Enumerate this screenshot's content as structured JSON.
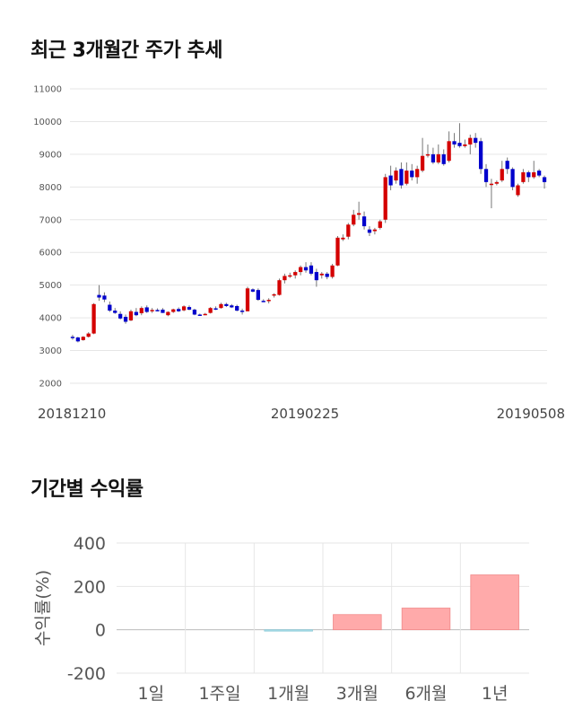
{
  "titles": {
    "price_chart": "최근 3개월간 주가 추세",
    "returns_chart": "기간별 수익률"
  },
  "colors": {
    "up": "#d40000",
    "down": "#0000cc",
    "grid": "#e6e6e6",
    "bar_positive": "#ffaaaa",
    "bar_negative": "#a8dde8"
  },
  "chart_data": [
    {
      "type": "candlestick",
      "title": "최근 3개월간 주가 추세",
      "x_tick_labels": [
        "20181210",
        "20190225",
        "20190508"
      ],
      "y_ticks": [
        2000,
        3000,
        4000,
        5000,
        6000,
        7000,
        8000,
        9000,
        10000,
        11000
      ],
      "ylim": [
        2000,
        11000
      ],
      "grid": true,
      "candles": [
        {
          "o": 3420,
          "h": 3480,
          "l": 3330,
          "c": 3380
        },
        {
          "o": 3400,
          "h": 3420,
          "l": 3250,
          "c": 3280
        },
        {
          "o": 3320,
          "h": 3440,
          "l": 3300,
          "c": 3420
        },
        {
          "o": 3420,
          "h": 3560,
          "l": 3400,
          "c": 3520
        },
        {
          "o": 3520,
          "h": 4450,
          "l": 3500,
          "c": 4420
        },
        {
          "o": 4700,
          "h": 5000,
          "l": 4520,
          "c": 4620
        },
        {
          "o": 4680,
          "h": 4780,
          "l": 4480,
          "c": 4560
        },
        {
          "o": 4400,
          "h": 4500,
          "l": 4180,
          "c": 4220
        },
        {
          "o": 4220,
          "h": 4300,
          "l": 4120,
          "c": 4150
        },
        {
          "o": 4120,
          "h": 4200,
          "l": 3950,
          "c": 3980
        },
        {
          "o": 4030,
          "h": 4100,
          "l": 3820,
          "c": 3880
        },
        {
          "o": 3920,
          "h": 4250,
          "l": 3900,
          "c": 4200
        },
        {
          "o": 4180,
          "h": 4300,
          "l": 4050,
          "c": 4080
        },
        {
          "o": 4140,
          "h": 4350,
          "l": 4080,
          "c": 4300
        },
        {
          "o": 4320,
          "h": 4380,
          "l": 4150,
          "c": 4180
        },
        {
          "o": 4200,
          "h": 4300,
          "l": 4150,
          "c": 4240
        },
        {
          "o": 4240,
          "h": 4290,
          "l": 4200,
          "c": 4230
        },
        {
          "o": 4250,
          "h": 4300,
          "l": 4150,
          "c": 4150
        },
        {
          "o": 4080,
          "h": 4200,
          "l": 4050,
          "c": 4180
        },
        {
          "o": 4180,
          "h": 4280,
          "l": 4150,
          "c": 4260
        },
        {
          "o": 4270,
          "h": 4320,
          "l": 4180,
          "c": 4200
        },
        {
          "o": 4230,
          "h": 4380,
          "l": 4200,
          "c": 4350
        },
        {
          "o": 4330,
          "h": 4380,
          "l": 4230,
          "c": 4250
        },
        {
          "o": 4250,
          "h": 4280,
          "l": 4080,
          "c": 4100
        },
        {
          "o": 4100,
          "h": 4130,
          "l": 4060,
          "c": 4080
        },
        {
          "o": 4100,
          "h": 4150,
          "l": 4080,
          "c": 4120
        },
        {
          "o": 4150,
          "h": 4330,
          "l": 4130,
          "c": 4300
        },
        {
          "o": 4290,
          "h": 4350,
          "l": 4240,
          "c": 4270
        },
        {
          "o": 4300,
          "h": 4460,
          "l": 4280,
          "c": 4420
        },
        {
          "o": 4420,
          "h": 4460,
          "l": 4330,
          "c": 4360
        },
        {
          "o": 4380,
          "h": 4420,
          "l": 4300,
          "c": 4320
        },
        {
          "o": 4360,
          "h": 4400,
          "l": 4200,
          "c": 4220
        },
        {
          "o": 4220,
          "h": 4280,
          "l": 4100,
          "c": 4180
        },
        {
          "o": 4200,
          "h": 4950,
          "l": 4200,
          "c": 4900
        },
        {
          "o": 4870,
          "h": 4900,
          "l": 4780,
          "c": 4800
        },
        {
          "o": 4850,
          "h": 4900,
          "l": 4520,
          "c": 4550
        },
        {
          "o": 4520,
          "h": 4570,
          "l": 4480,
          "c": 4500
        },
        {
          "o": 4520,
          "h": 4600,
          "l": 4440,
          "c": 4550
        },
        {
          "o": 4680,
          "h": 4750,
          "l": 4620,
          "c": 4720
        },
        {
          "o": 4700,
          "h": 5200,
          "l": 4680,
          "c": 5150
        },
        {
          "o": 5150,
          "h": 5350,
          "l": 5050,
          "c": 5280
        },
        {
          "o": 5280,
          "h": 5380,
          "l": 5220,
          "c": 5300
        },
        {
          "o": 5300,
          "h": 5450,
          "l": 5200,
          "c": 5400
        },
        {
          "o": 5400,
          "h": 5600,
          "l": 5300,
          "c": 5550
        },
        {
          "o": 5550,
          "h": 5700,
          "l": 5380,
          "c": 5450
        },
        {
          "o": 5600,
          "h": 5700,
          "l": 5300,
          "c": 5350
        },
        {
          "o": 5400,
          "h": 5500,
          "l": 4950,
          "c": 5150
        },
        {
          "o": 5300,
          "h": 5400,
          "l": 5200,
          "c": 5350
        },
        {
          "o": 5350,
          "h": 5400,
          "l": 5180,
          "c": 5250
        },
        {
          "o": 5250,
          "h": 5650,
          "l": 5200,
          "c": 5600
        },
        {
          "o": 5600,
          "h": 6500,
          "l": 5580,
          "c": 6450
        },
        {
          "o": 6400,
          "h": 6550,
          "l": 6350,
          "c": 6450
        },
        {
          "o": 6480,
          "h": 6900,
          "l": 6400,
          "c": 6850
        },
        {
          "o": 6850,
          "h": 7300,
          "l": 6800,
          "c": 7150
        },
        {
          "o": 7150,
          "h": 7550,
          "l": 7000,
          "c": 7200
        },
        {
          "o": 7100,
          "h": 7250,
          "l": 6700,
          "c": 6800
        },
        {
          "o": 6700,
          "h": 6800,
          "l": 6500,
          "c": 6600
        },
        {
          "o": 6650,
          "h": 6750,
          "l": 6550,
          "c": 6700
        },
        {
          "o": 6750,
          "h": 7000,
          "l": 6700,
          "c": 6950
        },
        {
          "o": 7000,
          "h": 8400,
          "l": 6900,
          "c": 8300
        },
        {
          "o": 8350,
          "h": 8650,
          "l": 7900,
          "c": 8050
        },
        {
          "o": 8200,
          "h": 8600,
          "l": 8100,
          "c": 8500
        },
        {
          "o": 8550,
          "h": 8750,
          "l": 7950,
          "c": 8050
        },
        {
          "o": 8100,
          "h": 8750,
          "l": 8050,
          "c": 8500
        },
        {
          "o": 8500,
          "h": 8700,
          "l": 8200,
          "c": 8300
        },
        {
          "o": 8300,
          "h": 8650,
          "l": 8100,
          "c": 8550
        },
        {
          "o": 8500,
          "h": 9500,
          "l": 8450,
          "c": 8950
        },
        {
          "o": 9000,
          "h": 9300,
          "l": 8900,
          "c": 9000
        },
        {
          "o": 9000,
          "h": 9200,
          "l": 8700,
          "c": 8750
        },
        {
          "o": 8750,
          "h": 9300,
          "l": 8700,
          "c": 9000
        },
        {
          "o": 9000,
          "h": 9150,
          "l": 8650,
          "c": 8700
        },
        {
          "o": 8800,
          "h": 9700,
          "l": 8750,
          "c": 9400
        },
        {
          "o": 9400,
          "h": 9650,
          "l": 9200,
          "c": 9300
        },
        {
          "o": 9350,
          "h": 9950,
          "l": 9200,
          "c": 9250
        },
        {
          "o": 9250,
          "h": 9450,
          "l": 9200,
          "c": 9300
        },
        {
          "o": 9300,
          "h": 9600,
          "l": 9000,
          "c": 9500
        },
        {
          "o": 9500,
          "h": 9650,
          "l": 9200,
          "c": 9350
        },
        {
          "o": 9400,
          "h": 9500,
          "l": 8400,
          "c": 8550
        },
        {
          "o": 8550,
          "h": 8700,
          "l": 8000,
          "c": 8150
        },
        {
          "o": 8100,
          "h": 8250,
          "l": 7350,
          "c": 8100
        },
        {
          "o": 8100,
          "h": 8200,
          "l": 8050,
          "c": 8150
        },
        {
          "o": 8200,
          "h": 8800,
          "l": 8150,
          "c": 8550
        },
        {
          "o": 8800,
          "h": 8900,
          "l": 8400,
          "c": 8550
        },
        {
          "o": 8550,
          "h": 8600,
          "l": 7900,
          "c": 8000
        },
        {
          "o": 7750,
          "h": 8100,
          "l": 7700,
          "c": 8050
        },
        {
          "o": 8150,
          "h": 8550,
          "l": 8100,
          "c": 8450
        },
        {
          "o": 8450,
          "h": 8500,
          "l": 8150,
          "c": 8300
        },
        {
          "o": 8300,
          "h": 8800,
          "l": 8250,
          "c": 8450
        },
        {
          "o": 8500,
          "h": 8550,
          "l": 8300,
          "c": 8350
        },
        {
          "o": 8300,
          "h": 8350,
          "l": 7950,
          "c": 8150
        }
      ]
    },
    {
      "type": "bar",
      "title": "기간별 수익률",
      "ylabel": "수익률(%)",
      "categories": [
        "1일",
        "1주일",
        "1개월",
        "3개월",
        "6개월",
        "1년"
      ],
      "values": [
        0,
        0,
        -3,
        70,
        100,
        253
      ],
      "y_ticks": [
        400,
        200,
        0,
        -200
      ],
      "ylim": [
        -200,
        400
      ],
      "grid": true
    }
  ]
}
